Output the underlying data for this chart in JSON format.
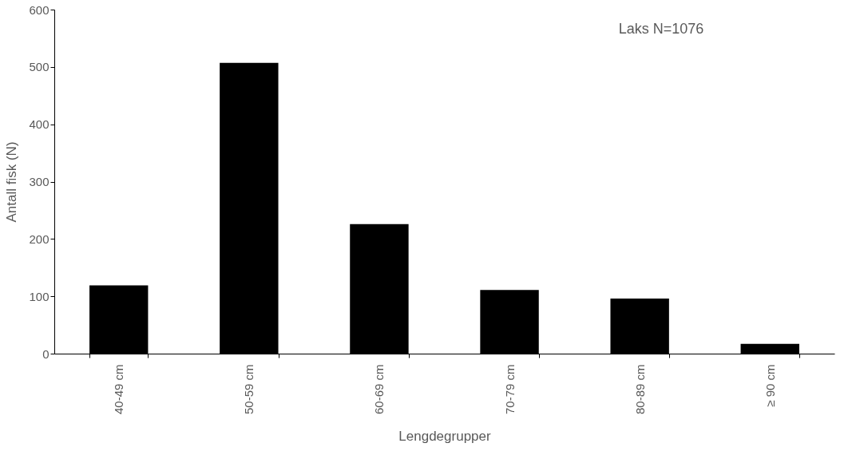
{
  "chart_data": {
    "type": "bar",
    "xlabel": "Lengdegrupper",
    "ylabel": "Antall fisk (N)",
    "categories": [
      "40-49 cm",
      "50-59 cm",
      "60-69 cm",
      "70-79 cm",
      "80-89 cm",
      "≥ 90 cm"
    ],
    "values": [
      119,
      507,
      226,
      111,
      96,
      17
    ],
    "color": "#000000",
    "ylim": [
      0,
      600
    ],
    "yticks": [
      0,
      100,
      200,
      300,
      400,
      500,
      600
    ],
    "grid": false,
    "annotations": [
      "Laks N=1076"
    ]
  }
}
